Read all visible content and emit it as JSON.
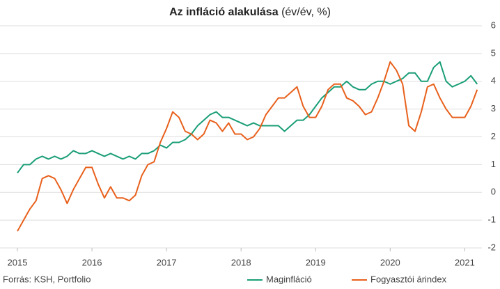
{
  "chart_data": {
    "type": "line",
    "title": "Az infláció alakulása",
    "subtitle": "(év/év, %)",
    "source": "Forrás: KSH, Portfolio",
    "x": [
      2015,
      2015.083,
      2015.167,
      2015.25,
      2015.333,
      2015.417,
      2015.5,
      2015.583,
      2015.667,
      2015.75,
      2015.833,
      2015.917,
      2016,
      2016.083,
      2016.167,
      2016.25,
      2016.333,
      2016.417,
      2016.5,
      2016.583,
      2016.667,
      2016.75,
      2016.833,
      2016.917,
      2017,
      2017.083,
      2017.167,
      2017.25,
      2017.333,
      2017.417,
      2017.5,
      2017.583,
      2017.667,
      2017.75,
      2017.833,
      2017.917,
      2018,
      2018.083,
      2018.167,
      2018.25,
      2018.333,
      2018.417,
      2018.5,
      2018.583,
      2018.667,
      2018.75,
      2018.833,
      2018.917,
      2019,
      2019.083,
      2019.167,
      2019.25,
      2019.333,
      2019.417,
      2019.5,
      2019.583,
      2019.667,
      2019.75,
      2019.833,
      2019.917,
      2020,
      2020.083,
      2020.167,
      2020.25,
      2020.333,
      2020.417,
      2020.5,
      2020.583,
      2020.667,
      2020.75,
      2020.833,
      2020.917,
      2021,
      2021.083,
      2021.167
    ],
    "series": [
      {
        "name": "Maginfláció",
        "color": "#1a9e77",
        "values": [
          0.7,
          1.0,
          1.0,
          1.2,
          1.3,
          1.2,
          1.3,
          1.2,
          1.3,
          1.5,
          1.4,
          1.4,
          1.5,
          1.4,
          1.3,
          1.4,
          1.3,
          1.2,
          1.3,
          1.2,
          1.4,
          1.4,
          1.5,
          1.7,
          1.6,
          1.8,
          1.8,
          1.9,
          2.1,
          2.4,
          2.6,
          2.8,
          2.9,
          2.7,
          2.7,
          2.6,
          2.5,
          2.4,
          2.5,
          2.4,
          2.4,
          2.4,
          2.4,
          2.2,
          2.4,
          2.6,
          2.6,
          2.8,
          3.1,
          3.4,
          3.6,
          3.8,
          3.8,
          4.0,
          3.8,
          3.7,
          3.7,
          3.9,
          4.0,
          4.0,
          3.9,
          4.0,
          4.1,
          4.3,
          4.3,
          4.0,
          4.0,
          4.5,
          4.7,
          4.0,
          3.8,
          3.9,
          4.0,
          4.2,
          3.9
        ]
      },
      {
        "name": "Fogyasztói árindex",
        "color": "#e8601c",
        "values": [
          -1.4,
          -1.0,
          -0.6,
          -0.3,
          0.5,
          0.6,
          0.5,
          0.1,
          -0.4,
          0.1,
          0.5,
          0.9,
          0.9,
          0.3,
          -0.2,
          0.2,
          -0.2,
          -0.2,
          -0.3,
          -0.1,
          0.6,
          1.0,
          1.1,
          1.8,
          2.3,
          2.9,
          2.7,
          2.2,
          2.1,
          1.9,
          2.1,
          2.6,
          2.5,
          2.2,
          2.5,
          2.1,
          2.1,
          1.9,
          2.0,
          2.3,
          2.8,
          3.1,
          3.4,
          3.4,
          3.6,
          3.8,
          3.1,
          2.7,
          2.7,
          3.1,
          3.7,
          3.9,
          3.9,
          3.4,
          3.3,
          3.1,
          2.8,
          2.9,
          3.4,
          4.0,
          4.7,
          4.4,
          3.9,
          2.4,
          2.2,
          2.9,
          3.8,
          3.9,
          3.4,
          3.0,
          2.7,
          2.7,
          2.7,
          3.1,
          3.7
        ]
      }
    ],
    "xlim": [
      2015,
      2021.23
    ],
    "xticks": [
      2015,
      2016,
      2017,
      2018,
      2019,
      2020,
      2021
    ],
    "ylim": [
      -2,
      6
    ],
    "yticks": [
      -2,
      -1,
      0,
      1,
      2,
      3,
      4,
      5,
      6
    ],
    "grid": true
  }
}
